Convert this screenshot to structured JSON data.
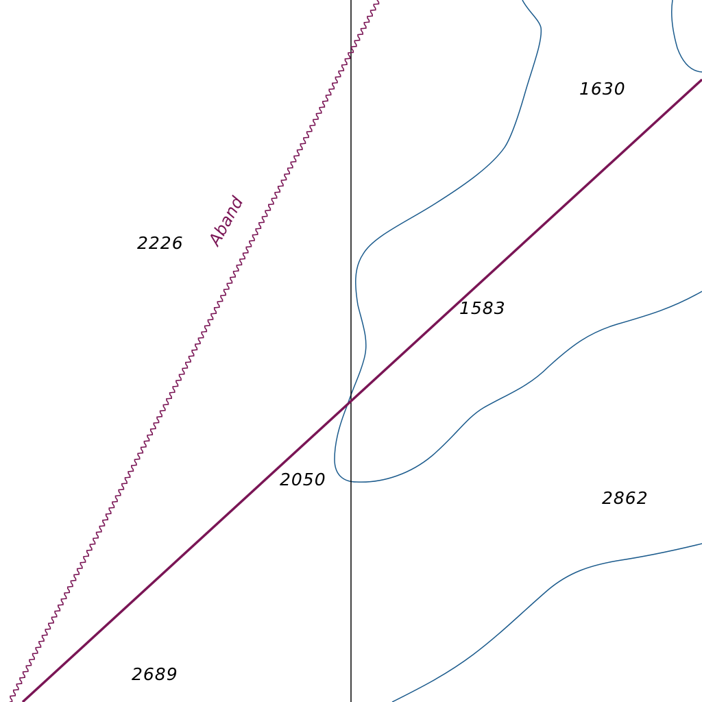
{
  "map": {
    "colors": {
      "background": "#ffffff",
      "boundary_line": "#000000",
      "railway": "#7a1555",
      "abandoned_railway": "#7a1555",
      "contour": "#1a5a8c",
      "label_text": "#000000",
      "road_label_text": "#7a1555"
    },
    "railway_label": "Aband",
    "parcels": [
      {
        "id": "1630",
        "label": "1630"
      },
      {
        "id": "2226",
        "label": "2226"
      },
      {
        "id": "1583",
        "label": "1583"
      },
      {
        "id": "2050",
        "label": "2050"
      },
      {
        "id": "2862",
        "label": "2862"
      },
      {
        "id": "2689",
        "label": "2689"
      }
    ]
  }
}
